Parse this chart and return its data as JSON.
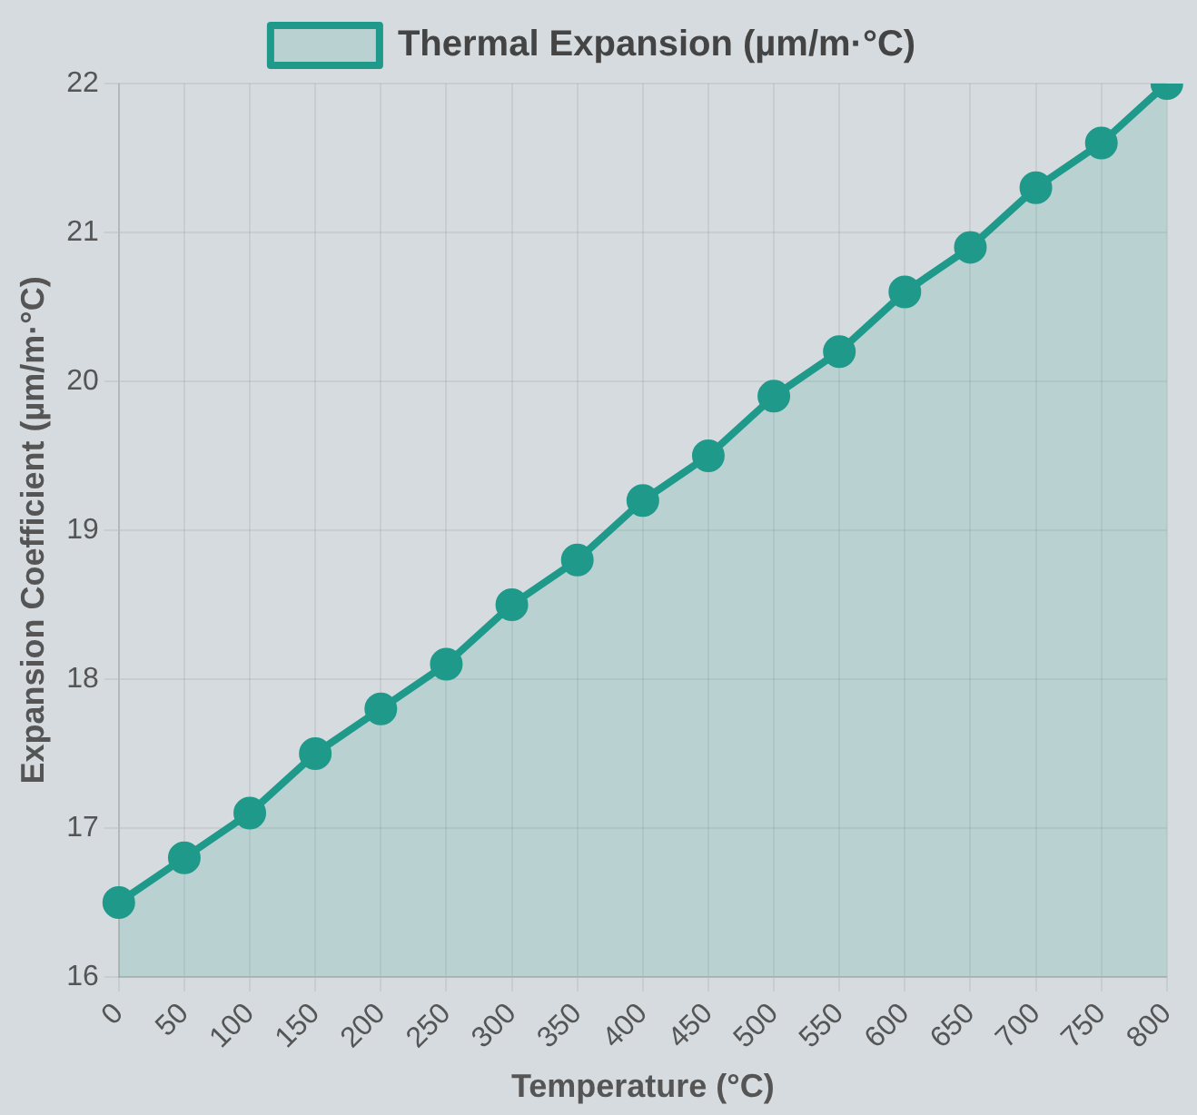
{
  "chart_data": {
    "type": "area",
    "xlabel": "Temperature (°C)",
    "ylabel": "Expansion Coefficient (µm/m·°C)",
    "categories": [
      "0",
      "50",
      "100",
      "150",
      "200",
      "250",
      "300",
      "350",
      "400",
      "450",
      "500",
      "550",
      "600",
      "650",
      "700",
      "750",
      "800"
    ],
    "series": [
      {
        "name": "Thermal Expansion (µm/m·°C)",
        "color": "#1f9a8a",
        "values": [
          16.5,
          16.8,
          17.1,
          17.5,
          17.8,
          18.1,
          18.5,
          18.8,
          19.2,
          19.5,
          19.9,
          20.2,
          20.6,
          20.9,
          21.3,
          21.6,
          22.0
        ]
      }
    ],
    "ylim": [
      16,
      22
    ],
    "yticks": [
      16,
      17,
      18,
      19,
      20,
      21,
      22
    ],
    "grid": true,
    "legend": "top",
    "marker": "circle",
    "line_style": "solid"
  }
}
